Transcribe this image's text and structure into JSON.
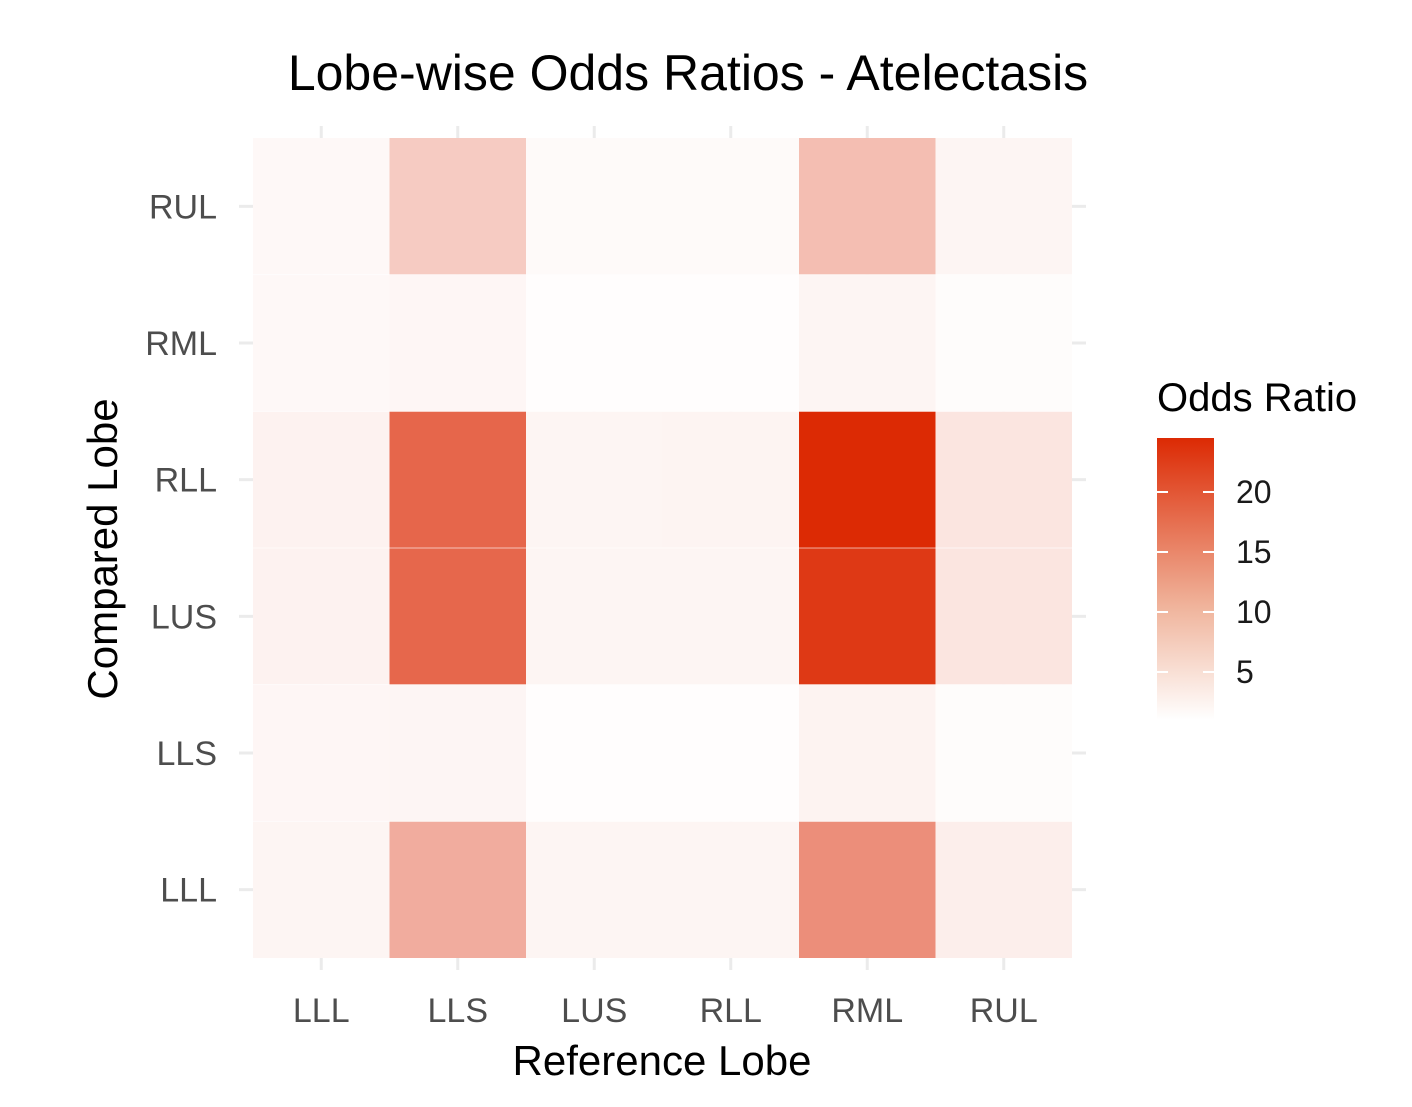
{
  "chart_data": {
    "type": "heatmap",
    "title": "Lobe-wise Odds Ratios - Atelectasis",
    "xlabel": "Reference Lobe",
    "ylabel": "Compared Lobe",
    "x_categories": [
      "LLL",
      "LLS",
      "LUS",
      "RLL",
      "RML",
      "RUL"
    ],
    "y_categories": [
      "LLL",
      "LLS",
      "LUS",
      "RLL",
      "RML",
      "RUL"
    ],
    "values": [
      [
        1.2,
        9.5,
        1.2,
        1.2,
        13.0,
        2.0
      ],
      [
        1.0,
        1.1,
        0.2,
        0.2,
        1.4,
        0.4
      ],
      [
        1.5,
        17.5,
        1.2,
        1.2,
        22.8,
        3.0
      ],
      [
        1.5,
        17.6,
        1.2,
        1.3,
        24.5,
        3.0
      ],
      [
        0.8,
        1.0,
        0.2,
        0.2,
        1.2,
        0.4
      ],
      [
        0.8,
        6.0,
        0.6,
        0.6,
        7.5,
        1.2
      ]
    ],
    "color_scale": {
      "low": "#ffffff",
      "high": "#dc2a04",
      "domain": [
        0,
        24.5
      ]
    },
    "legend": {
      "title": "Odds Ratio",
      "ticks": [
        5,
        10,
        15,
        20
      ],
      "position": "right"
    },
    "grid": true
  }
}
